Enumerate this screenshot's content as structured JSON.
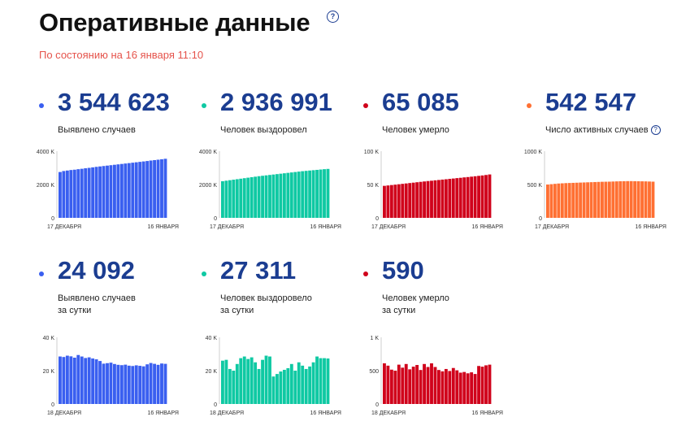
{
  "header": {
    "title": "Оперативные данные",
    "help_icon_glyph": "?",
    "as_of": "По состоянию на 16 января 11:10"
  },
  "cards": [
    {
      "value": "3 544 623",
      "label_lines": [
        "Выявлено случаев"
      ],
      "has_help": false
    },
    {
      "value": "2 936 991",
      "label_lines": [
        "Человек выздоровел"
      ],
      "has_help": false
    },
    {
      "value": "65 085",
      "label_lines": [
        "Человек умерло"
      ],
      "has_help": false
    },
    {
      "value": "542 547",
      "label_lines": [
        "Число активных случаев"
      ],
      "has_help": true
    },
    {
      "value": "24 092",
      "label_lines": [
        "Выявлено случаев",
        "за сутки"
      ],
      "has_help": false
    },
    {
      "value": "27 311",
      "label_lines": [
        "Человек выздоровело",
        "за сутки"
      ],
      "has_help": false
    },
    {
      "value": "590",
      "label_lines": [
        "Человек умерло",
        "за сутки"
      ],
      "has_help": false
    }
  ],
  "chart_data": [
    {
      "type": "bar",
      "color": "#3a5ff0",
      "ylim": [
        0,
        4000
      ],
      "y_ticks": [
        "4000 K",
        "2000 K",
        "0"
      ],
      "x_start": "17 ДЕКАБРЯ",
      "x_end": "16 ЯНВАРЯ",
      "values": [
        2750,
        2810,
        2840,
        2870,
        2890,
        2920,
        2945,
        2975,
        3000,
        3030,
        3060,
        3085,
        3110,
        3135,
        3160,
        3185,
        3210,
        3235,
        3260,
        3285,
        3310,
        3335,
        3360,
        3385,
        3410,
        3440,
        3465,
        3490,
        3515,
        3545
      ]
    },
    {
      "type": "bar",
      "color": "#0fc9a3",
      "ylim": [
        0,
        4000
      ],
      "y_ticks": [
        "4000 K",
        "2000 K",
        "0"
      ],
      "x_start": "17 ДЕКАБРЯ",
      "x_end": "16 ЯНВАРЯ",
      "values": [
        2200,
        2230,
        2260,
        2290,
        2320,
        2350,
        2380,
        2410,
        2440,
        2470,
        2500,
        2525,
        2550,
        2575,
        2600,
        2625,
        2650,
        2675,
        2700,
        2725,
        2750,
        2775,
        2800,
        2820,
        2840,
        2860,
        2880,
        2900,
        2920,
        2937
      ]
    },
    {
      "type": "bar",
      "color": "#d0021b",
      "ylim": [
        0,
        100
      ],
      "y_ticks": [
        "100 K",
        "50 K",
        "0"
      ],
      "x_start": "17 ДЕКАБРЯ",
      "x_end": "16 ЯНВАРЯ",
      "values": [
        48,
        48.6,
        49.2,
        49.8,
        50.4,
        51,
        51.6,
        52.2,
        52.8,
        53.4,
        54,
        54.6,
        55.2,
        55.7,
        56.3,
        56.8,
        57.4,
        57.9,
        58.5,
        59,
        59.6,
        60.1,
        60.7,
        61.2,
        61.8,
        62.4,
        63,
        63.6,
        64.3,
        65.1
      ]
    },
    {
      "type": "bar",
      "color": "#ff7033",
      "ylim": [
        0,
        1000
      ],
      "y_ticks": [
        "1000 K",
        "500 K",
        "0"
      ],
      "x_start": "17 ДЕКАБРЯ",
      "x_end": "16 ЯНВАРЯ",
      "values": [
        500,
        505,
        510,
        515,
        518,
        521,
        523,
        525,
        527,
        529,
        531,
        533,
        535,
        537,
        539,
        541,
        542,
        543,
        545,
        547,
        549,
        550,
        551,
        551,
        550,
        549,
        548,
        547,
        545,
        543
      ]
    },
    {
      "type": "bar",
      "color": "#3a5ff0",
      "ylim": [
        0,
        40
      ],
      "y_ticks": [
        "40 K",
        "20 K",
        "0"
      ],
      "x_start": "18 ДЕКАБРЯ",
      "x_end": "16 ЯНВАРЯ",
      "values": [
        28.5,
        28.2,
        29,
        28.6,
        27.8,
        29.4,
        28.5,
        27.6,
        28,
        27.3,
        26.8,
        25.8,
        24.2,
        24.5,
        24.8,
        24,
        23.5,
        23.3,
        23.6,
        23,
        22.8,
        23.2,
        22.9,
        22.6,
        23.8,
        24.6,
        24.1,
        23.5,
        24.3,
        24.1
      ]
    },
    {
      "type": "bar",
      "color": "#0fc9a3",
      "ylim": [
        0,
        40
      ],
      "y_ticks": [
        "40 K",
        "20 K",
        "0"
      ],
      "x_start": "18 ДЕКАБРЯ",
      "x_end": "16 ЯНВАРЯ",
      "values": [
        26,
        26.5,
        21,
        20,
        24,
        27.5,
        28.5,
        27,
        28,
        25,
        21,
        26.5,
        29,
        28.5,
        16.5,
        18,
        19.5,
        20.5,
        21.5,
        24,
        20,
        25,
        23,
        21,
        22.5,
        25,
        28.5,
        27.5,
        27.5,
        27.3
      ]
    },
    {
      "type": "bar",
      "color": "#d0021b",
      "ylim": [
        0,
        1000
      ],
      "y_ticks": [
        "1 K",
        "500",
        "0"
      ],
      "x_start": "18 ДЕКАБРЯ",
      "x_end": "16 ЯНВАРЯ",
      "values": [
        610,
        575,
        515,
        500,
        590,
        545,
        600,
        520,
        560,
        585,
        510,
        600,
        555,
        610,
        555,
        510,
        490,
        525,
        495,
        540,
        505,
        470,
        480,
        460,
        475,
        450,
        570,
        560,
        580,
        590
      ]
    }
  ]
}
